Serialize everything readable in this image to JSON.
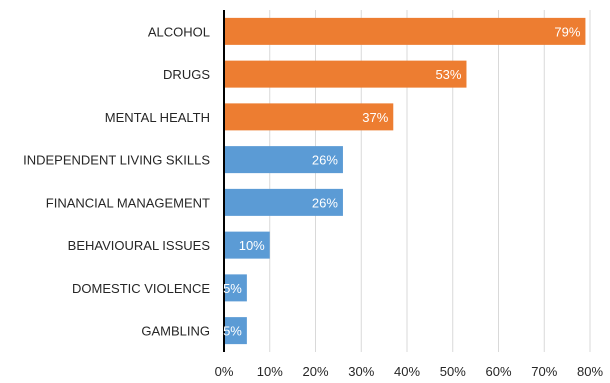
{
  "chart_data": {
    "type": "bar",
    "orientation": "horizontal",
    "categories": [
      "ALCOHOL",
      "DRUGS",
      "MENTAL HEALTH",
      "INDEPENDENT LIVING SKILLS",
      "FINANCIAL MANAGEMENT",
      "BEHAVIOURAL ISSUES",
      "DOMESTIC VIOLENCE",
      "GAMBLING"
    ],
    "values": [
      79,
      53,
      37,
      26,
      26,
      10,
      5,
      5
    ],
    "data_labels": [
      "79%",
      "53%",
      "37%",
      "26%",
      "26%",
      "10%",
      "5%",
      "5%"
    ],
    "bar_colors": [
      "#ED7D31",
      "#ED7D31",
      "#ED7D31",
      "#5B9BD5",
      "#5B9BD5",
      "#5B9BD5",
      "#5B9BD5",
      "#5B9BD5"
    ],
    "xlim": [
      0,
      80
    ],
    "x_ticks": [
      0,
      10,
      20,
      30,
      40,
      50,
      60,
      70,
      80
    ],
    "x_tick_labels": [
      "0%",
      "10%",
      "20%",
      "30%",
      "40%",
      "50%",
      "60%",
      "70%",
      "80%"
    ],
    "grid": "vertical",
    "legend": "none",
    "gridline_color": "#D9D9D9",
    "axis_color": "#000000"
  }
}
